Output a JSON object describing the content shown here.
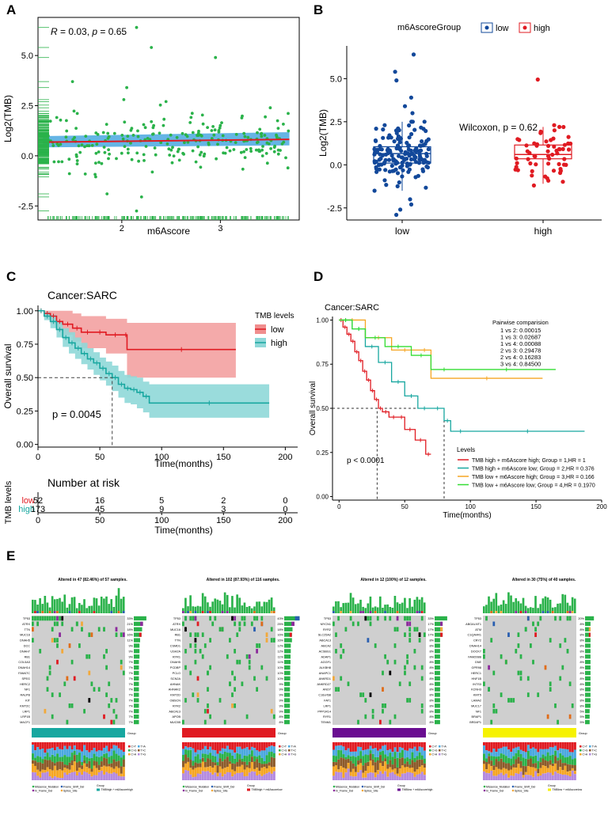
{
  "panel_letters": [
    "A",
    "B",
    "C",
    "D",
    "E"
  ],
  "colors": {
    "green": "#2ab24a",
    "red": "#e01b22",
    "blueband": "#4aa8e0",
    "navy": "#12489a",
    "teal": "#18a7a0",
    "pink": "#f08e8e",
    "orange": "#f5a623",
    "lime": "#33dd33",
    "purple": "#6a0d91",
    "yellow": "#f6f200"
  },
  "chart_data": [
    {
      "panel": "A",
      "type": "scatter",
      "title": "",
      "xlabel": "m6Ascore",
      "ylabel": "Log2(TMB)",
      "xlim": [
        1.15,
        3.8
      ],
      "ylim": [
        -3.2,
        6.9
      ],
      "xticks": [
        2,
        3
      ],
      "yticks": [
        -2.5,
        0.0,
        2.5,
        5.0
      ],
      "xtick_labels": [
        "2",
        "3"
      ],
      "ytick_labels": [
        "-2.5",
        "0.0",
        "2.5",
        "5.0"
      ],
      "annotation": "R = 0.03, p = 0.65",
      "regression": {
        "x": [
          1.2,
          3.7
        ],
        "y": [
          0.68,
          0.82
        ],
        "ci_low": [
          0.42,
          0.52
        ],
        "ci_high": [
          0.98,
          1.18
        ]
      },
      "points_summary": {
        "n": 245,
        "mean_y": 0.72,
        "sd_y": 0.85,
        "extremes": [
          [
            2.15,
            6.4
          ],
          [
            2.3,
            5.4
          ],
          [
            2.95,
            4.9
          ],
          [
            1.5,
            3.7
          ],
          [
            2.05,
            3.4
          ],
          [
            1.85,
            -1.9
          ],
          [
            2.15,
            -2.75
          ],
          [
            2.2,
            -2.05
          ]
        ]
      },
      "rug": true
    },
    {
      "panel": "B",
      "type": "box",
      "xlabel": "",
      "ylabel": "Log2(TMB)",
      "ylim": [
        -3.2,
        6.9
      ],
      "yticks": [
        -2.5,
        0.0,
        2.5,
        5.0
      ],
      "ytick_labels": [
        "-2.5",
        "0.0",
        "2.5",
        "5.0"
      ],
      "categories": [
        "low",
        "high"
      ],
      "legend_title": "m6AscoreGroup",
      "annotation": "Wilcoxon, p = 0.62",
      "series": [
        {
          "name": "low",
          "q1": 0.1,
          "median": 0.65,
          "q3": 1.05,
          "whisker_low": -1.5,
          "whisker_high": 2.5,
          "n": 165,
          "extremes": [
            6.4,
            5.4,
            4.9,
            3.9,
            3.4,
            3.0,
            -2.0,
            -2.3,
            -2.6,
            -2.9
          ]
        },
        {
          "name": "high",
          "q1": 0.35,
          "median": 0.6,
          "q3": 1.15,
          "whisker_low": -1.1,
          "whisker_high": 2.2,
          "n": 60,
          "extremes": [
            4.95,
            2.3,
            2.0,
            -1.2
          ]
        }
      ]
    },
    {
      "panel": "C",
      "type": "line",
      "title": "Cancer:SARC",
      "xlabel": "Time(months)",
      "ylabel": "Overall survival",
      "xlim": [
        0,
        210
      ],
      "ylim": [
        -0.02,
        1.04
      ],
      "xticks": [
        0,
        50,
        100,
        150,
        200
      ],
      "xtick_labels": [
        "0",
        "50",
        "100",
        "150",
        "200"
      ],
      "yticks": [
        0,
        0.25,
        0.5,
        0.75,
        1.0
      ],
      "ytick_labels": [
        "0.00",
        "0.25",
        "0.50",
        "0.75",
        "1.00"
      ],
      "legend_title": "TMB levels",
      "annotation": "p = 0.0045",
      "median_line": {
        "x": 60,
        "y": 0.5
      },
      "series": [
        {
          "name": "low",
          "x": [
            0,
            5,
            10,
            15,
            20,
            28,
            35,
            45,
            55,
            70,
            72,
            160
          ],
          "y": [
            1.0,
            0.98,
            0.96,
            0.92,
            0.9,
            0.87,
            0.84,
            0.84,
            0.82,
            0.82,
            0.71,
            0.71
          ],
          "ci_low": [
            1.0,
            0.95,
            0.9,
            0.85,
            0.82,
            0.77,
            0.72,
            0.72,
            0.68,
            0.68,
            0.5,
            0.5
          ],
          "ci_high": [
            1.0,
            1.0,
            1.0,
            1.0,
            1.0,
            0.98,
            0.96,
            0.96,
            0.94,
            0.94,
            0.91,
            0.91
          ]
        },
        {
          "name": "high",
          "x": [
            0,
            5,
            10,
            15,
            20,
            25,
            30,
            35,
            40,
            45,
            50,
            55,
            60,
            65,
            70,
            75,
            80,
            85,
            90,
            187
          ],
          "y": [
            1.0,
            0.96,
            0.92,
            0.86,
            0.8,
            0.76,
            0.72,
            0.68,
            0.64,
            0.61,
            0.57,
            0.53,
            0.5,
            0.45,
            0.42,
            0.41,
            0.39,
            0.36,
            0.31,
            0.31
          ],
          "ci_low": [
            1.0,
            0.93,
            0.87,
            0.8,
            0.73,
            0.68,
            0.64,
            0.6,
            0.56,
            0.52,
            0.48,
            0.44,
            0.4,
            0.35,
            0.31,
            0.3,
            0.27,
            0.24,
            0.2,
            0.2
          ],
          "ci_high": [
            1.0,
            0.99,
            0.97,
            0.92,
            0.87,
            0.84,
            0.8,
            0.76,
            0.72,
            0.69,
            0.65,
            0.62,
            0.59,
            0.55,
            0.52,
            0.51,
            0.5,
            0.47,
            0.45,
            0.45
          ]
        }
      ],
      "risk_table": {
        "title": "Number at risk",
        "ylabel": "TMB levels",
        "times": [
          0,
          50,
          100,
          150,
          200
        ],
        "xlabel": "Time(months)",
        "rows": [
          {
            "name": "low",
            "values": [
              "52",
              "16",
              "5",
              "2",
              "0"
            ]
          },
          {
            "name": "high",
            "values": [
              "173",
              "45",
              "9",
              "3",
              "0"
            ]
          }
        ]
      }
    },
    {
      "panel": "D",
      "type": "line",
      "title": "Cancer:SARC",
      "xlabel": "Time(months)",
      "ylabel": "Overall survival",
      "xlim": [
        -5,
        200
      ],
      "ylim": [
        -0.02,
        1.02
      ],
      "xticks": [
        0,
        50,
        100,
        150,
        200
      ],
      "xtick_labels": [
        "0",
        "50",
        "100",
        "150",
        "200"
      ],
      "yticks": [
        0,
        0.25,
        0.5,
        0.75,
        1.0
      ],
      "ytick_labels": [
        "0.00",
        "0.25",
        "0.50",
        "0.75",
        "1.00"
      ],
      "annotation": "p < 0.0001",
      "median_lines": [
        {
          "x": 29,
          "y": 0.5
        },
        {
          "x": 80,
          "y": 0.5
        }
      ],
      "pairwise_title": "Pairwise comparision",
      "pairwise": [
        "1 vs 2: 0.00015",
        "1 vs 3: 0.02687",
        "1 vs 4: 0.00088",
        "2 vs 3: 0.29478",
        "2 vs 4: 0.16283",
        "3 vs 4: 0.84500"
      ],
      "legend_title": "Levels",
      "series": [
        {
          "name": "TMB high + m6Ascore high; Group = 1,HR = 1",
          "x": [
            0,
            3,
            6,
            9,
            12,
            15,
            18,
            21,
            24,
            27,
            30,
            33,
            38,
            45,
            50,
            58,
            66,
            70
          ],
          "y": [
            1.0,
            0.96,
            0.92,
            0.88,
            0.82,
            0.77,
            0.71,
            0.66,
            0.6,
            0.55,
            0.5,
            0.48,
            0.45,
            0.45,
            0.38,
            0.32,
            0.24,
            0.24
          ]
        },
        {
          "name": "TMB high + m6Ascore low; Group = 2,HR = 0.376",
          "x": [
            0,
            10,
            20,
            30,
            40,
            50,
            60,
            70,
            80,
            85,
            100,
            187
          ],
          "y": [
            1.0,
            0.95,
            0.85,
            0.76,
            0.65,
            0.57,
            0.5,
            0.5,
            0.43,
            0.37,
            0.37,
            0.37
          ]
        },
        {
          "name": "TMB low + m6Ascore high; Group = 3,HR = 0.166",
          "x": [
            0,
            20,
            40,
            60,
            70,
            155
          ],
          "y": [
            1.0,
            0.9,
            0.83,
            0.83,
            0.67,
            0.67
          ]
        },
        {
          "name": "TMB low + m6Ascore low; Group = 4,HR = 0.1970",
          "x": [
            0,
            10,
            20,
            35,
            55,
            70,
            90,
            165
          ],
          "y": [
            1.0,
            0.95,
            0.9,
            0.85,
            0.8,
            0.72,
            0.72,
            0.72
          ]
        }
      ]
    },
    {
      "panel": "E",
      "type": "heatmap",
      "oncoplots": [
        {
          "title": "Altered in 47 (82.46%) of 57 samples.",
          "genes": [
            "TP53",
            "ATRX",
            "TTN",
            "MUC16",
            "DNAH5",
            "DCC",
            "DNAH7",
            "RB1",
            "COL5A3",
            "DNAH14",
            "FAM47C",
            "SPEG",
            "HERC2",
            "NF1",
            "RALPB",
            "KIT",
            "KMT2C",
            "LRP1",
            "LRP1B",
            "MACF1"
          ],
          "pcts": [
            "33%",
            "21%",
            "18%",
            "16%",
            "11%",
            "9%",
            "9%",
            "9%",
            "7%",
            "7%",
            "7%",
            "7%",
            "7%",
            "7%",
            "7%",
            "7%",
            "7%",
            "7%",
            "7%",
            "7%"
          ],
          "group_color": "#18a7a0",
          "legend_group": "TMBhigh + m6Ascorehigh"
        },
        {
          "title": "Altered in 102 (87.93%) of 116 samples.",
          "genes": [
            "TP53",
            "ATRX",
            "MUC16",
            "RB1",
            "TTN",
            "CSMD1",
            "USH2A",
            "RYR1",
            "DNAH5",
            "PCDBP",
            "PCLO",
            "SCN2A",
            "AHNAK",
            "AHNAK2",
            "KMT2D",
            "OBSCN",
            "RYR2",
            "ABCA13",
            "APOB",
            "MUC5B"
          ],
          "pcts": [
            "43%",
            "25%",
            "18%",
            "16%",
            "16%",
            "12%",
            "12%",
            "11%",
            "11%",
            "10%",
            "10%",
            "10%",
            "9%",
            "9%",
            "9%",
            "9%",
            "9%",
            "9%",
            "8%",
            "8%"
          ],
          "group_color": "#e01b22",
          "legend_group": "TMBhigh + m6Ascorelow"
        },
        {
          "title": "Altered in 12 (100%) of 12 samples.",
          "genes": [
            "TP53",
            "MYCN1",
            "RYR2",
            "SLC25A2",
            "ABCA13",
            "ABCA2",
            "ACSBG1",
            "ADAP1",
            "AGGF1",
            "ALKBH8",
            "ANAPC1",
            "ANKRD1",
            "ANKRD27",
            "ANO7",
            "C16orf38",
            "FAT1",
            "LRP1",
            "PPP1R14",
            "RYR1",
            "TENM1"
          ],
          "pcts": [
            "33%",
            "17%",
            "17%",
            "17%",
            "8%",
            "8%",
            "8%",
            "8%",
            "8%",
            "8%",
            "8%",
            "8%",
            "8%",
            "8%",
            "8%",
            "8%",
            "8%",
            "8%",
            "8%",
            "8%"
          ],
          "group_color": "#6a0d91",
          "legend_group": "TMBlow + m6Ascorehigh"
        },
        {
          "title": "Altered in 30 (75%) of 40 samples.",
          "genes": [
            "TP53",
            "ABGALNT1",
            "ATM",
            "C1QAVR1",
            "CRY2",
            "DNAH14",
            "DOCK7",
            "FAM208B",
            "GNE",
            "GPR98",
            "HERC1",
            "HNF1B",
            "INTS3",
            "KCNH3",
            "KMT5",
            "LAMA2",
            "MUC17",
            "NF1",
            "BRAP1",
            "BRD4P1"
          ],
          "pcts": [
            "20%",
            "8%",
            "8%",
            "8%",
            "8%",
            "8%",
            "8%",
            "8%",
            "8%",
            "8%",
            "8%",
            "8%",
            "8%",
            "8%",
            "8%",
            "8%",
            "8%",
            "5%",
            "5%",
            "5%"
          ],
          "group_color": "#f6f200",
          "legend_group": "TMBlow + m6Ascorelow"
        }
      ],
      "legend_labels": {
        "mutation_types": [
          "Missense_Mutation",
          "Frame_Shift_Del",
          "In_Frame_Del",
          "Splice_Site",
          "Nonsense_Mutation",
          "Frame_Shift_Ins",
          "Multi_Hit"
        ],
        "titv": [
          "C>T",
          "T>A",
          "C>G",
          "T>C",
          "C>A",
          "T>G"
        ],
        "group": "Group"
      }
    }
  ]
}
